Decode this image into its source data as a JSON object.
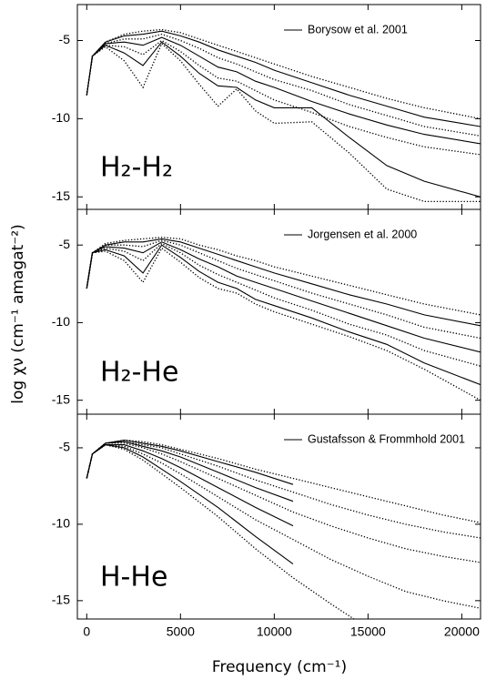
{
  "x_label": "Frequency (cm⁻¹)",
  "y_label": "log χν (cm⁻¹ amagat⁻²)",
  "chart_data": [
    {
      "type": "line",
      "label": "H₂-H₂",
      "legend": "Borysow et al. 2001",
      "x": [
        0,
        300,
        1000,
        2000,
        3000,
        4000,
        5000,
        6000,
        7000,
        8000,
        9000,
        10000,
        12000,
        14000,
        16000,
        18000,
        21000
      ],
      "xlim": [
        -500,
        21000
      ],
      "xticks": [
        0,
        5000,
        10000,
        15000,
        20000
      ],
      "ylim": [
        -15.8,
        -2.7
      ],
      "yticks": [
        -5,
        -10,
        -15
      ],
      "series": [
        {
          "color": "#000",
          "style": "dotted",
          "values": [
            -8.5,
            -6.0,
            -5.1,
            -4.6,
            -4.4,
            -4.3,
            -4.5,
            -4.9,
            -5.3,
            -5.7,
            -6.1,
            -6.5,
            -7.3,
            -8.0,
            -8.7,
            -9.3,
            -10.0
          ]
        },
        {
          "color": "#000",
          "style": "solid",
          "values": [
            -8.5,
            -6.0,
            -5.1,
            -4.7,
            -4.6,
            -4.4,
            -4.7,
            -5.1,
            -5.6,
            -6.0,
            -6.4,
            -6.9,
            -7.7,
            -8.5,
            -9.2,
            -9.9,
            -10.5
          ]
        },
        {
          "color": "#000",
          "style": "dotted",
          "values": [
            -8.5,
            -6.0,
            -5.2,
            -4.9,
            -4.9,
            -4.6,
            -5.0,
            -5.5,
            -6.1,
            -6.5,
            -7.0,
            -7.5,
            -8.2,
            -9.1,
            -9.8,
            -10.5,
            -11.1
          ]
        },
        {
          "color": "#000",
          "style": "solid",
          "values": [
            -8.5,
            -6.0,
            -5.2,
            -5.1,
            -5.3,
            -4.8,
            -5.3,
            -6.0,
            -6.7,
            -7.0,
            -7.6,
            -8.0,
            -8.9,
            -9.7,
            -10.4,
            -11.0,
            -11.6
          ]
        },
        {
          "color": "#000",
          "style": "dotted",
          "values": [
            -8.5,
            -6.0,
            -5.3,
            -5.4,
            -5.9,
            -5.0,
            -5.7,
            -6.6,
            -7.4,
            -7.6,
            -8.2,
            -8.8,
            -9.6,
            -10.5,
            -11.2,
            -11.8,
            -12.3
          ]
        },
        {
          "color": "#000",
          "style": "solid",
          "values": [
            -8.5,
            -6.0,
            -5.3,
            -5.8,
            -6.6,
            -5.1,
            -6.0,
            -7.1,
            -7.9,
            -8.0,
            -8.8,
            -9.3,
            -9.3,
            -11.2,
            -13.0,
            -14.0,
            -15.0
          ]
        },
        {
          "color": "#000",
          "style": "dotted",
          "values": [
            -8.5,
            -6.0,
            -5.4,
            -6.3,
            -8.0,
            -5.2,
            -6.3,
            -7.8,
            -9.2,
            -8.1,
            -9.5,
            -10.3,
            -10.2,
            -12.2,
            -14.5,
            -15.3,
            -15.3
          ]
        }
      ]
    },
    {
      "type": "line",
      "label": "H₂-He",
      "legend": "Jorgensen et al. 2000",
      "x": [
        0,
        300,
        1000,
        2000,
        3000,
        4000,
        5000,
        6000,
        7000,
        8000,
        9000,
        10000,
        12000,
        14000,
        16000,
        18000,
        21000
      ],
      "xlim": [
        -500,
        21000
      ],
      "xticks": [
        0,
        5000,
        10000,
        15000,
        20000
      ],
      "ylim": [
        -15.9,
        -2.7
      ],
      "yticks": [
        -5,
        -10,
        -15
      ],
      "series": [
        {
          "color": "#000",
          "style": "dotted",
          "values": [
            -7.8,
            -5.5,
            -4.9,
            -4.7,
            -4.6,
            -4.5,
            -4.6,
            -5.0,
            -5.3,
            -5.7,
            -6.0,
            -6.4,
            -7.0,
            -7.6,
            -8.2,
            -8.8,
            -9.5
          ]
        },
        {
          "color": "#000",
          "style": "solid",
          "values": [
            -7.8,
            -5.5,
            -5.0,
            -4.8,
            -4.8,
            -4.6,
            -4.8,
            -5.2,
            -5.6,
            -6.0,
            -6.4,
            -6.8,
            -7.5,
            -8.2,
            -8.8,
            -9.5,
            -10.2
          ]
        },
        {
          "color": "#000",
          "style": "dotted",
          "values": [
            -7.8,
            -5.5,
            -5.0,
            -5.0,
            -5.1,
            -4.7,
            -5.0,
            -5.5,
            -6.0,
            -6.5,
            -6.9,
            -7.3,
            -8.1,
            -8.8,
            -9.5,
            -10.3,
            -11.0
          ]
        },
        {
          "color": "#000",
          "style": "solid",
          "values": [
            -7.8,
            -5.5,
            -5.1,
            -5.2,
            -5.5,
            -4.8,
            -5.3,
            -5.9,
            -6.4,
            -7.0,
            -7.4,
            -7.8,
            -8.6,
            -9.4,
            -10.2,
            -11.0,
            -11.9
          ]
        },
        {
          "color": "#000",
          "style": "dotted",
          "values": [
            -7.8,
            -5.5,
            -5.2,
            -5.4,
            -6.0,
            -4.9,
            -5.5,
            -6.3,
            -6.9,
            -7.4,
            -7.9,
            -8.4,
            -9.2,
            -10.1,
            -10.8,
            -11.8,
            -12.8
          ]
        },
        {
          "color": "#000",
          "style": "solid",
          "values": [
            -7.8,
            -5.5,
            -5.3,
            -5.7,
            -6.8,
            -5.0,
            -5.8,
            -6.7,
            -7.4,
            -7.8,
            -8.5,
            -8.9,
            -9.7,
            -10.6,
            -11.4,
            -12.6,
            -14.0
          ]
        },
        {
          "color": "#000",
          "style": "dotted",
          "values": [
            -7.8,
            -5.5,
            -5.4,
            -6.0,
            -7.4,
            -5.2,
            -6.1,
            -7.1,
            -7.8,
            -8.1,
            -8.8,
            -9.3,
            -10.1,
            -10.9,
            -11.8,
            -13.0,
            -15.0
          ]
        }
      ]
    },
    {
      "type": "line",
      "label": "H-He",
      "legend": "Gustafsson & Frommhold 2001",
      "x": [
        0,
        300,
        1000,
        2000,
        3000,
        4000,
        5000,
        7000,
        9000,
        11000,
        13000,
        15000,
        17000,
        19000,
        21000
      ],
      "xlim": [
        -500,
        21000
      ],
      "xticks": [
        0,
        5000,
        10000,
        15000,
        20000
      ],
      "ylim": [
        -16.2,
        -2.8
      ],
      "yticks": [
        -5,
        -10,
        -15
      ],
      "series": [
        {
          "color": "#000",
          "style": "dotted",
          "values": [
            -7.0,
            -5.4,
            -4.7,
            -4.5,
            -4.6,
            -4.8,
            -5.1,
            -5.7,
            -6.4,
            -7.0,
            -7.6,
            -8.2,
            -8.8,
            -9.4,
            -9.9
          ]
        },
        {
          "color": "#000",
          "style": "solid",
          "values": [
            -7.0,
            -5.4,
            -4.7,
            -4.5,
            -4.7,
            -4.9,
            -5.2,
            -5.9,
            -6.6,
            -7.4,
            null,
            null,
            null,
            null,
            null
          ]
        },
        {
          "color": "#000",
          "style": "dotted",
          "values": [
            -7.0,
            -5.4,
            -4.7,
            -4.6,
            -4.8,
            -5.0,
            -5.4,
            -6.2,
            -7.1,
            -7.9,
            -8.7,
            -9.4,
            -10.0,
            -10.5,
            -10.9
          ]
        },
        {
          "color": "#000",
          "style": "solid",
          "values": [
            -7.0,
            -5.4,
            -4.7,
            -4.6,
            -4.9,
            -5.2,
            -5.6,
            -6.6,
            -7.6,
            -8.5,
            null,
            null,
            null,
            null,
            null
          ]
        },
        {
          "color": "#000",
          "style": "dotted",
          "values": [
            -7.0,
            -5.4,
            -4.7,
            -4.7,
            -5.0,
            -5.4,
            -5.9,
            -7.0,
            -8.1,
            -9.2,
            -10.1,
            -10.9,
            -11.6,
            -12.1,
            -12.5
          ]
        },
        {
          "color": "#000",
          "style": "solid",
          "values": [
            -7.0,
            -5.4,
            -4.8,
            -4.8,
            -5.2,
            -5.7,
            -6.3,
            -7.6,
            -8.9,
            -10.1,
            null,
            null,
            null,
            null,
            null
          ]
        },
        {
          "color": "#000",
          "style": "dotted",
          "values": [
            -7.0,
            -5.4,
            -4.8,
            -4.9,
            -5.4,
            -6.0,
            -6.7,
            -8.2,
            -9.7,
            -11.0,
            -12.3,
            -13.4,
            -14.4,
            -15.0,
            -15.5
          ]
        },
        {
          "color": "#000",
          "style": "solid",
          "values": [
            -7.0,
            -5.4,
            -4.8,
            -5.0,
            -5.6,
            -6.4,
            -7.2,
            -8.9,
            -10.8,
            -12.6,
            null,
            null,
            null,
            null,
            null
          ]
        },
        {
          "color": "#000",
          "style": "dotted",
          "values": [
            -7.0,
            -5.4,
            -4.8,
            -5.1,
            -5.8,
            -6.7,
            -7.6,
            -9.5,
            -11.6,
            -13.5,
            -15.2,
            -16.8,
            null,
            null,
            null
          ]
        }
      ]
    }
  ]
}
